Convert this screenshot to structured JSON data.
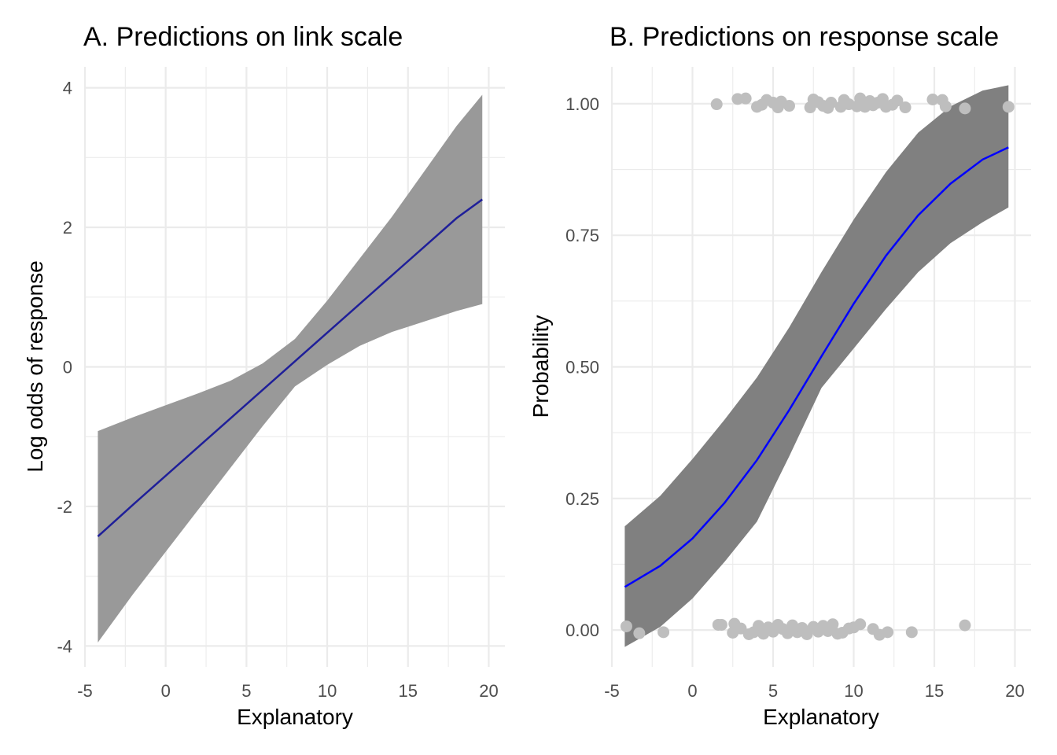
{
  "chart_data": [
    {
      "type": "line",
      "title": "A. Predictions on link scale",
      "xlabel": "Explanatory",
      "ylabel": "Log odds of response",
      "xlim": [
        -5,
        21
      ],
      "ylim": [
        -4.3,
        4.3
      ],
      "xticks": [
        -5,
        0,
        5,
        10,
        15,
        20
      ],
      "xtick_labels": [
        "-5",
        "0",
        "5",
        "10",
        "15",
        "20"
      ],
      "yticks": [
        -4,
        -2,
        0,
        2,
        4
      ],
      "ytick_labels": [
        "-4",
        "-2",
        "0",
        "2",
        "4"
      ],
      "grid": true,
      "line_color": "#1f1f99",
      "band_color": "#999999",
      "series": [
        {
          "x": [
            -4.2,
            -2,
            0,
            2,
            4,
            6,
            8,
            10,
            12,
            14,
            16,
            18,
            19.6
          ],
          "fit": [
            -2.43,
            -1.97,
            -1.56,
            -1.15,
            -0.74,
            -0.33,
            0.08,
            0.49,
            0.9,
            1.31,
            1.72,
            2.13,
            2.4
          ],
          "lower": [
            -3.95,
            -3.25,
            -2.65,
            -2.05,
            -1.45,
            -0.85,
            -0.28,
            0.03,
            0.3,
            0.5,
            0.65,
            0.8,
            0.9
          ],
          "upper": [
            -0.92,
            -0.72,
            -0.55,
            -0.38,
            -0.2,
            0.05,
            0.4,
            0.95,
            1.55,
            2.15,
            2.8,
            3.45,
            3.9
          ]
        }
      ]
    },
    {
      "type": "line",
      "title": "B. Predictions on response scale",
      "xlabel": "Explanatory",
      "ylabel": "Probability",
      "xlim": [
        -5,
        21
      ],
      "ylim": [
        -0.07,
        1.07
      ],
      "xticks": [
        -5,
        0,
        5,
        10,
        15,
        20
      ],
      "xtick_labels": [
        "-5",
        "0",
        "5",
        "10",
        "15",
        "20"
      ],
      "yticks": [
        0,
        0.25,
        0.5,
        0.75,
        1
      ],
      "ytick_labels": [
        "0.00",
        "0.25",
        "0.50",
        "0.75",
        "1.00"
      ],
      "grid": true,
      "line_color": "#0000ff",
      "band_color": "#808080",
      "point_color": "#bebebe",
      "series": [
        {
          "x": [
            -4.2,
            -2,
            0,
            2,
            4,
            6,
            8,
            10,
            12,
            14,
            16,
            18,
            19.6
          ],
          "fit": [
            0.082,
            0.122,
            0.174,
            0.242,
            0.323,
            0.418,
            0.52,
            0.62,
            0.711,
            0.788,
            0.848,
            0.894,
            0.917
          ],
          "lower": [
            -0.032,
            0.006,
            0.06,
            0.13,
            0.206,
            0.33,
            0.46,
            0.535,
            0.61,
            0.68,
            0.735,
            0.775,
            0.803
          ],
          "upper": [
            0.197,
            0.255,
            0.325,
            0.4,
            0.48,
            0.575,
            0.68,
            0.78,
            0.87,
            0.945,
            0.995,
            1.025,
            1.035
          ]
        }
      ],
      "points": [
        {
          "x": -4.1,
          "y": 0.007
        },
        {
          "x": -3.3,
          "y": -0.006
        },
        {
          "x": -1.8,
          "y": -0.004
        },
        {
          "x": 1.6,
          "y": 0.01
        },
        {
          "x": 1.8,
          "y": 0.01
        },
        {
          "x": 2.5,
          "y": -0.005
        },
        {
          "x": 2.6,
          "y": 0.012
        },
        {
          "x": 3.0,
          "y": 0.003
        },
        {
          "x": 3.5,
          "y": -0.008
        },
        {
          "x": 3.8,
          "y": -0.004
        },
        {
          "x": 4.1,
          "y": 0.008
        },
        {
          "x": 4.4,
          "y": -0.007
        },
        {
          "x": 4.7,
          "y": 0.005
        },
        {
          "x": 5.0,
          "y": -0.003
        },
        {
          "x": 5.3,
          "y": 0.01
        },
        {
          "x": 5.6,
          "y": 0.002
        },
        {
          "x": 5.9,
          "y": -0.006
        },
        {
          "x": 6.2,
          "y": 0.009
        },
        {
          "x": 6.5,
          "y": -0.004
        },
        {
          "x": 6.8,
          "y": 0.004
        },
        {
          "x": 7.1,
          "y": -0.008
        },
        {
          "x": 7.5,
          "y": 0.006
        },
        {
          "x": 7.8,
          "y": -0.003
        },
        {
          "x": 8.1,
          "y": 0.008
        },
        {
          "x": 8.4,
          "y": -0.002
        },
        {
          "x": 8.7,
          "y": 0.011
        },
        {
          "x": 9.0,
          "y": -0.007
        },
        {
          "x": 9.3,
          "y": -0.005
        },
        {
          "x": 9.7,
          "y": 0.003
        },
        {
          "x": 10.0,
          "y": 0.005
        },
        {
          "x": 10.4,
          "y": 0.011
        },
        {
          "x": 11.2,
          "y": 0.002
        },
        {
          "x": 11.6,
          "y": -0.009
        },
        {
          "x": 12.1,
          "y": -0.004
        },
        {
          "x": 13.6,
          "y": -0.004
        },
        {
          "x": 16.9,
          "y": 0.009
        },
        {
          "x": 1.5,
          "y": 0.999
        },
        {
          "x": 2.8,
          "y": 1.009
        },
        {
          "x": 3.3,
          "y": 1.01
        },
        {
          "x": 4.0,
          "y": 0.994
        },
        {
          "x": 4.3,
          "y": 0.998
        },
        {
          "x": 4.6,
          "y": 1.007
        },
        {
          "x": 5.0,
          "y": 1.002
        },
        {
          "x": 5.3,
          "y": 0.993
        },
        {
          "x": 5.5,
          "y": 1.004
        },
        {
          "x": 6.0,
          "y": 0.996
        },
        {
          "x": 7.3,
          "y": 0.993
        },
        {
          "x": 7.5,
          "y": 1.008
        },
        {
          "x": 7.8,
          "y": 1.003
        },
        {
          "x": 8.1,
          "y": 0.996
        },
        {
          "x": 8.4,
          "y": 0.992
        },
        {
          "x": 8.6,
          "y": 1.002
        },
        {
          "x": 9.2,
          "y": 0.994
        },
        {
          "x": 9.4,
          "y": 1.007
        },
        {
          "x": 9.7,
          "y": 0.999
        },
        {
          "x": 10.2,
          "y": 0.995
        },
        {
          "x": 10.4,
          "y": 1.01
        },
        {
          "x": 10.7,
          "y": 0.994
        },
        {
          "x": 11.0,
          "y": 1.005
        },
        {
          "x": 11.2,
          "y": 0.997
        },
        {
          "x": 11.5,
          "y": 1.002
        },
        {
          "x": 11.8,
          "y": 1.009
        },
        {
          "x": 12.0,
          "y": 0.994
        },
        {
          "x": 12.4,
          "y": 0.998
        },
        {
          "x": 12.7,
          "y": 1.006
        },
        {
          "x": 13.2,
          "y": 0.993
        },
        {
          "x": 14.9,
          "y": 1.008
        },
        {
          "x": 15.5,
          "y": 1.007
        },
        {
          "x": 15.7,
          "y": 0.995
        },
        {
          "x": 16.9,
          "y": 0.991
        },
        {
          "x": 19.6,
          "y": 0.994
        }
      ]
    }
  ]
}
